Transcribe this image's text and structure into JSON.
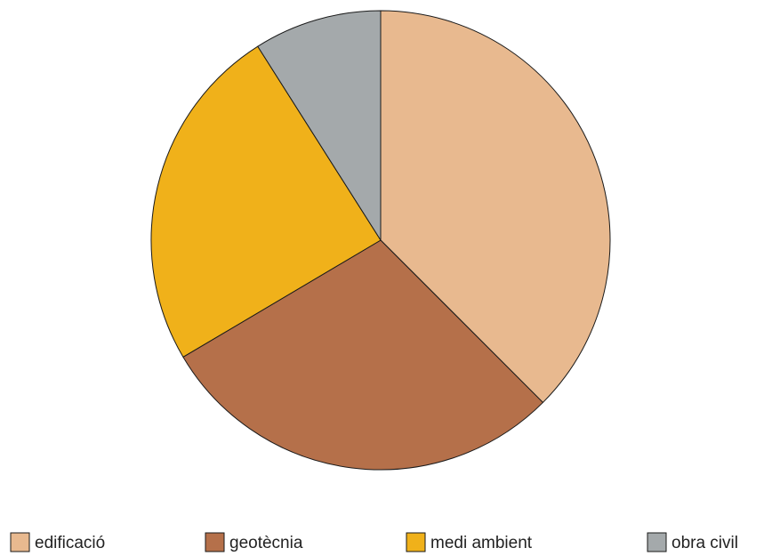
{
  "chart_data": {
    "type": "pie",
    "title": "",
    "start_angle": "12 o'clock",
    "direction": "clockwise",
    "legend_position": "bottom",
    "slices": [
      {
        "label": "edificació",
        "value": 37.5,
        "color": "#E8B98F"
      },
      {
        "label": "geotècnia",
        "value": 29.0,
        "color": "#B5704A"
      },
      {
        "label": "medi ambient",
        "value": 24.5,
        "color": "#F0B11A"
      },
      {
        "label": "obra civil",
        "value": 9.0,
        "color": "#A4A9AB"
      }
    ]
  }
}
